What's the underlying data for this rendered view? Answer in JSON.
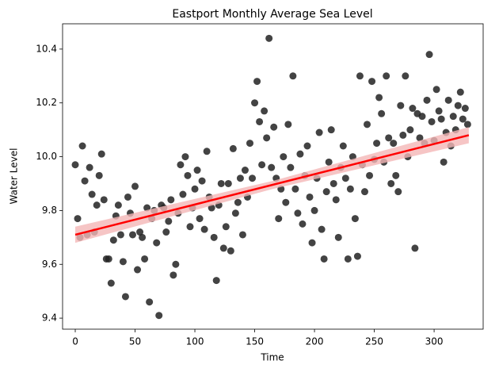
{
  "chart_data": {
    "type": "scatter",
    "title": "Eastport Monthly Average Sea Level",
    "x_label": "Time",
    "y_label": "Water Level",
    "xlim": [
      -10.6,
      341
    ],
    "ylim": [
      9.359,
      10.494
    ],
    "xticks": [
      0,
      50,
      100,
      150,
      200,
      250,
      300
    ],
    "yticks": [
      9.4,
      9.6,
      9.8,
      {
        "value": 10,
        "label": "10.0"
      },
      10.2,
      10.4
    ],
    "point_color": "#222222",
    "fit_color": "#ff0000",
    "band_color": "#f4b6b6",
    "x": [
      0,
      2,
      4,
      6,
      8,
      10,
      12,
      14,
      16,
      18,
      20,
      22,
      24,
      26,
      28,
      30,
      32,
      34,
      36,
      38,
      40,
      42,
      44,
      46,
      48,
      50,
      52,
      54,
      56,
      58,
      60,
      62,
      64,
      66,
      68,
      70,
      72,
      74,
      76,
      78,
      80,
      82,
      84,
      86,
      88,
      90,
      92,
      94,
      96,
      98,
      100,
      102,
      104,
      106,
      108,
      110,
      112,
      114,
      116,
      118,
      120,
      122,
      124,
      126,
      128,
      130,
      132,
      134,
      136,
      138,
      140,
      142,
      144,
      146,
      148,
      150,
      152,
      154,
      156,
      158,
      160,
      162,
      164,
      166,
      168,
      170,
      172,
      174,
      176,
      178,
      180,
      182,
      184,
      186,
      188,
      190,
      192,
      194,
      196,
      198,
      200,
      202,
      204,
      206,
      208,
      210,
      212,
      214,
      216,
      218,
      220,
      222,
      224,
      226,
      228,
      230,
      232,
      234,
      236,
      238,
      240,
      242,
      244,
      246,
      248,
      250,
      252,
      254,
      256,
      258,
      260,
      262,
      264,
      266,
      268,
      270,
      272,
      274,
      276,
      278,
      280,
      282,
      284,
      286,
      288,
      290,
      292,
      294,
      296,
      298,
      300,
      302,
      304,
      306,
      308,
      310,
      312,
      314,
      316,
      318,
      320,
      322,
      324,
      326,
      328
    ],
    "values": [
      9.97,
      9.77,
      9.7,
      10.04,
      9.91,
      9.71,
      9.96,
      9.86,
      9.72,
      9.82,
      9.93,
      10.01,
      9.84,
      9.62,
      9.62,
      9.53,
      9.69,
      9.78,
      9.82,
      9.71,
      9.61,
      9.48,
      9.85,
      9.79,
      9.71,
      9.89,
      9.58,
      9.72,
      9.7,
      9.62,
      9.81,
      9.46,
      9.77,
      9.8,
      9.68,
      9.41,
      9.82,
      9.81,
      9.72,
      9.76,
      9.84,
      9.56,
      9.6,
      9.79,
      9.97,
      9.86,
      10.0,
      9.93,
      9.74,
      9.81,
      9.88,
      9.95,
      9.77,
      9.91,
      9.73,
      10.02,
      9.85,
      9.81,
      9.7,
      9.54,
      9.82,
      9.9,
      9.66,
      9.74,
      9.9,
      9.65,
      10.03,
      9.79,
      9.83,
      9.92,
      9.71,
      9.95,
      9.85,
      10.05,
      9.92,
      10.2,
      10.28,
      10.13,
      9.97,
      10.17,
      10.07,
      10.44,
      9.96,
      10.11,
      9.92,
      9.77,
      9.88,
      10.0,
      9.83,
      10.12,
      9.96,
      10.3,
      9.88,
      9.79,
      10.01,
      9.75,
      9.93,
      10.04,
      9.85,
      9.68,
      9.8,
      9.92,
      10.09,
      9.73,
      9.62,
      9.87,
      9.98,
      10.1,
      9.9,
      9.84,
      9.7,
      9.96,
      10.04,
      9.92,
      9.62,
      9.88,
      10.0,
      9.77,
      9.63,
      10.3,
      9.97,
      9.87,
      10.12,
      9.93,
      10.28,
      9.99,
      10.05,
      10.22,
      10.16,
      9.98,
      10.3,
      10.07,
      9.9,
      10.05,
      9.93,
      9.87,
      10.19,
      10.08,
      10.3,
      10.0,
      10.1,
      10.18,
      9.66,
      10.16,
      10.07,
      10.15,
      10.05,
      10.21,
      10.38,
      10.13,
      10.06,
      10.25,
      10.17,
      10.14,
      9.98,
      10.09,
      10.21,
      10.04,
      10.15,
      10.1,
      10.19,
      10.24,
      10.14,
      10.18,
      10.12
    ],
    "fit": {
      "x": [
        0,
        329
      ],
      "values": [
        9.71,
        10.08
      ]
    },
    "band": {
      "x": [
        0,
        165,
        329
      ],
      "lower": [
        9.68,
        9.88,
        10.05
      ],
      "upper": [
        9.74,
        9.91,
        10.11
      ]
    }
  }
}
